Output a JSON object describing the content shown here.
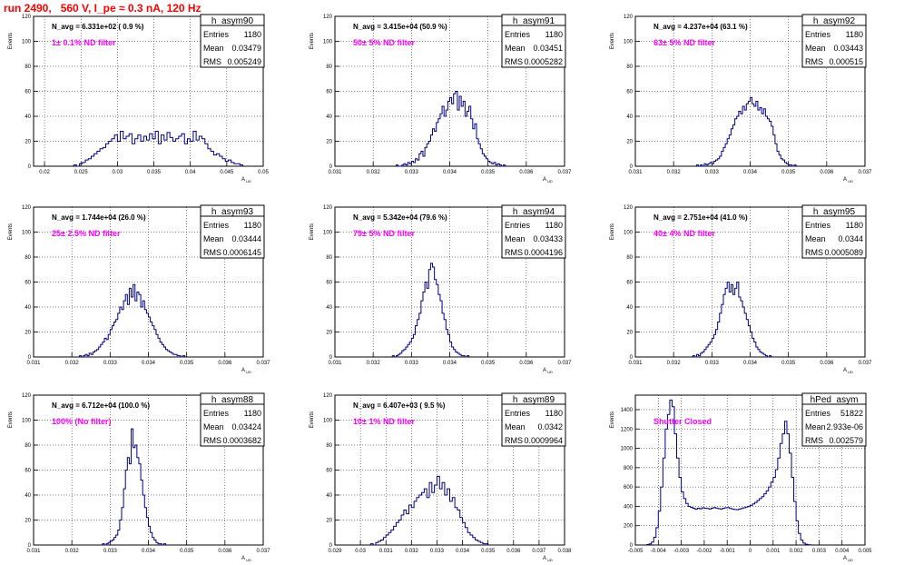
{
  "header": {
    "title": "run 2490,   560 V, I_pe ≈ 0.3 nA, 120 Hz"
  },
  "chart_data": [
    {
      "type": "bar",
      "name": "h_asym90",
      "navg": "N_avg = 6.331e+02 ( 0.9 %)",
      "filter_label": "1± 0.1% ND filter",
      "stats": {
        "entries": "1180",
        "mean": "0.03479",
        "rms": "0.005249"
      },
      "xlim": [
        0.0185,
        0.05
      ],
      "ylim": [
        0,
        120
      ],
      "x_ticks": [
        0.02,
        0.025,
        0.03,
        0.035,
        0.04,
        0.045,
        0.05
      ],
      "y_ticks": [
        0,
        20,
        40,
        60,
        80,
        100,
        120
      ],
      "ylabel": "Events",
      "xlabel": "A",
      "xlabel_sub": "UD",
      "bin_start": 0.024,
      "bin_width": 0.0004,
      "values": [
        1,
        0,
        2,
        3,
        5,
        6,
        8,
        10,
        12,
        14,
        15,
        18,
        20,
        22,
        25,
        20,
        28,
        22,
        24,
        26,
        18,
        22,
        25,
        20,
        24,
        21,
        26,
        22,
        28,
        18,
        25,
        21,
        27,
        23,
        20,
        22,
        24,
        26,
        18,
        22,
        20,
        28,
        21,
        24,
        22,
        18,
        14,
        12,
        9,
        10,
        8,
        6,
        4,
        5,
        3,
        2,
        2,
        1
      ]
    },
    {
      "type": "bar",
      "name": "h_asym91",
      "navg": "N_avg = 3.415e+04 (50.9 %)",
      "filter_label": "50± 5% ND filter",
      "stats": {
        "entries": "1180",
        "mean": "0.03451",
        "rms": "0.0005282"
      },
      "xlim": [
        0.031,
        0.037
      ],
      "ylim": [
        0,
        120
      ],
      "x_ticks": [
        0.031,
        0.032,
        0.033,
        0.034,
        0.035,
        0.036,
        0.037
      ],
      "y_ticks": [
        0,
        20,
        40,
        60,
        80,
        100,
        120
      ],
      "ylabel": "Events",
      "xlabel": "A",
      "xlabel_sub": "UD",
      "bin_start": 0.0326,
      "bin_width": 5e-05,
      "values": [
        1,
        0,
        0,
        1,
        2,
        1,
        3,
        2,
        4,
        3,
        6,
        5,
        10,
        12,
        8,
        15,
        18,
        20,
        25,
        30,
        28,
        35,
        38,
        42,
        48,
        40,
        45,
        52,
        55,
        50,
        58,
        60,
        45,
        56,
        48,
        52,
        40,
        44,
        48,
        38,
        30,
        34,
        22,
        18,
        14,
        10,
        8,
        6,
        4,
        3,
        2,
        3,
        1,
        2,
        1,
        0,
        1
      ]
    },
    {
      "type": "bar",
      "name": "h_asym92",
      "navg": "N_avg = 4.237e+04 (63.1 %)",
      "filter_label": "63± 5% ND filter",
      "stats": {
        "entries": "1180",
        "mean": "0.03443",
        "rms": "0.000515"
      },
      "xlim": [
        0.031,
        0.037
      ],
      "ylim": [
        0,
        120
      ],
      "x_ticks": [
        0.031,
        0.032,
        0.033,
        0.034,
        0.035,
        0.036,
        0.037
      ],
      "y_ticks": [
        0,
        20,
        40,
        60,
        80,
        100,
        120
      ],
      "ylabel": "Events",
      "xlabel": "A",
      "xlabel_sub": "UD",
      "bin_start": 0.0326,
      "bin_width": 5e-05,
      "values": [
        1,
        0,
        1,
        0,
        2,
        1,
        2,
        3,
        2,
        4,
        5,
        6,
        8,
        12,
        15,
        18,
        22,
        25,
        30,
        33,
        38,
        40,
        44,
        42,
        48,
        45,
        50,
        52,
        55,
        50,
        48,
        52,
        45,
        47,
        42,
        46,
        40,
        38,
        36,
        32,
        25,
        18,
        12,
        9,
        6,
        5,
        3,
        2,
        1,
        1,
        0,
        1
      ]
    },
    {
      "type": "bar",
      "name": "h_asym93",
      "navg": "N_avg = 1.744e+04 (26.0 %)",
      "filter_label": "25± 2.5% ND filter",
      "stats": {
        "entries": "1180",
        "mean": "0.03444",
        "rms": "0.0006145"
      },
      "xlim": [
        0.031,
        0.037
      ],
      "ylim": [
        0,
        120
      ],
      "x_ticks": [
        0.031,
        0.032,
        0.033,
        0.034,
        0.035,
        0.036,
        0.037
      ],
      "y_ticks": [
        0,
        20,
        40,
        60,
        80,
        100,
        120
      ],
      "ylabel": "Events",
      "xlabel": "A",
      "xlabel_sub": "UD",
      "bin_start": 0.0322,
      "bin_width": 5e-05,
      "values": [
        1,
        0,
        1,
        2,
        1,
        3,
        2,
        4,
        5,
        6,
        8,
        10,
        12,
        15,
        14,
        18,
        22,
        25,
        28,
        30,
        35,
        40,
        38,
        45,
        50,
        42,
        55,
        48,
        58,
        45,
        52,
        50,
        40,
        45,
        38,
        35,
        32,
        28,
        25,
        22,
        18,
        15,
        12,
        10,
        8,
        6,
        5,
        4,
        3,
        2,
        2,
        1,
        1,
        0,
        1
      ]
    },
    {
      "type": "bar",
      "name": "h_asym94",
      "navg": "N_avg = 5.342e+04 (79.6 %)",
      "filter_label": "79± 5% ND filter",
      "stats": {
        "entries": "1180",
        "mean": "0.03433",
        "rms": "0.0004196"
      },
      "xlim": [
        0.031,
        0.037
      ],
      "ylim": [
        0,
        120
      ],
      "x_ticks": [
        0.031,
        0.032,
        0.033,
        0.034,
        0.035,
        0.036,
        0.037
      ],
      "y_ticks": [
        0,
        20,
        40,
        60,
        80,
        100,
        120
      ],
      "ylabel": "Events",
      "xlabel": "A",
      "xlabel_sub": "UD",
      "bin_start": 0.0325,
      "bin_width": 5e-05,
      "values": [
        1,
        0,
        1,
        2,
        3,
        5,
        6,
        8,
        10,
        12,
        15,
        18,
        25,
        30,
        35,
        45,
        52,
        60,
        55,
        70,
        75,
        72,
        62,
        58,
        50,
        45,
        35,
        30,
        22,
        18,
        12,
        8,
        6,
        4,
        3,
        2,
        1,
        1,
        0,
        1
      ]
    },
    {
      "type": "bar",
      "name": "h_asym95",
      "navg": "N_avg = 2.751e+04 (41.0 %)",
      "filter_label": "40± 4% ND filter",
      "stats": {
        "entries": "1180",
        "mean": "0.0344",
        "rms": "0.0005089"
      },
      "xlim": [
        0.031,
        0.037
      ],
      "ylim": [
        0,
        120
      ],
      "x_ticks": [
        0.031,
        0.032,
        0.033,
        0.034,
        0.035,
        0.036,
        0.037
      ],
      "y_ticks": [
        0,
        20,
        40,
        60,
        80,
        100,
        120
      ],
      "ylabel": "Events",
      "xlabel": "A",
      "xlabel_sub": "UD",
      "bin_start": 0.0325,
      "bin_width": 5e-05,
      "values": [
        1,
        0,
        2,
        1,
        3,
        4,
        6,
        8,
        10,
        12,
        15,
        18,
        22,
        28,
        35,
        42,
        50,
        55,
        60,
        52,
        58,
        50,
        55,
        60,
        48,
        45,
        40,
        35,
        30,
        25,
        20,
        15,
        12,
        8,
        6,
        4,
        3,
        2,
        1,
        0,
        1
      ]
    },
    {
      "type": "bar",
      "name": "h_asym88",
      "navg": "N_avg = 6.712e+04 (100.0 %)",
      "filter_label": "100% (No filter)",
      "stats": {
        "entries": "1180",
        "mean": "0.03424",
        "rms": "0.0003682"
      },
      "xlim": [
        0.031,
        0.037
      ],
      "ylim": [
        0,
        120
      ],
      "x_ticks": [
        0.031,
        0.032,
        0.033,
        0.034,
        0.035,
        0.036,
        0.037
      ],
      "y_ticks": [
        0,
        20,
        40,
        60,
        80,
        100,
        120
      ],
      "ylabel": "Events",
      "xlabel": "A",
      "xlabel_sub": "UD",
      "bin_start": 0.0328,
      "bin_width": 5e-05,
      "values": [
        1,
        0,
        1,
        2,
        3,
        4,
        6,
        8,
        12,
        20,
        30,
        45,
        60,
        70,
        65,
        93,
        78,
        80,
        70,
        65,
        52,
        40,
        30,
        22,
        15,
        10,
        6,
        4,
        2,
        1,
        1,
        0,
        1
      ]
    },
    {
      "type": "bar",
      "name": "h_asym89",
      "navg": "N_avg = 6.407e+03 ( 9.5 %)",
      "filter_label": "10± 1% ND filter",
      "stats": {
        "entries": "1180",
        "mean": "0.0342",
        "rms": "0.0009964"
      },
      "xlim": [
        0.029,
        0.038
      ],
      "ylim": [
        0,
        120
      ],
      "x_ticks": [
        0.029,
        0.03,
        0.031,
        0.032,
        0.033,
        0.034,
        0.035,
        0.036,
        0.037,
        0.038
      ],
      "y_ticks": [
        0,
        20,
        40,
        60,
        80,
        100,
        120
      ],
      "ylabel": "Events",
      "xlabel": "A",
      "xlabel_sub": "UD",
      "bin_start": 0.0304,
      "bin_width": 0.0001,
      "values": [
        1,
        0,
        2,
        3,
        4,
        6,
        8,
        10,
        12,
        15,
        18,
        20,
        24,
        28,
        25,
        32,
        30,
        35,
        38,
        40,
        42,
        45,
        38,
        50,
        42,
        48,
        55,
        45,
        50,
        40,
        45,
        35,
        38,
        30,
        28,
        22,
        18,
        14,
        10,
        8,
        6,
        4,
        3,
        2,
        1,
        1
      ]
    },
    {
      "type": "bar",
      "name": "hPed_asym",
      "navg": "",
      "filter_label": "Shutter Closed",
      "stats": {
        "entries": "51822",
        "mean": "2.933e-06",
        "rms": "0.002579"
      },
      "xlim": [
        -0.005,
        0.005
      ],
      "ylim": [
        0,
        1550
      ],
      "x_ticks": [
        -0.005,
        -0.004,
        -0.003,
        -0.002,
        -0.001,
        0,
        0.001,
        0.002,
        0.003,
        0.004,
        0.005
      ],
      "y_ticks": [
        0,
        200,
        400,
        600,
        800,
        1000,
        1200,
        1400
      ],
      "ylabel": "Events",
      "xlabel": "A",
      "xlabel_sub": "UD",
      "bin_start": -0.0045,
      "bin_width": 0.0001,
      "values": [
        5,
        12,
        30,
        80,
        180,
        350,
        600,
        900,
        1200,
        1350,
        1500,
        1430,
        1150,
        900,
        700,
        550,
        480,
        430,
        400,
        390,
        380,
        370,
        380,
        375,
        385,
        380,
        378,
        372,
        380,
        388,
        382,
        376,
        372,
        380,
        385,
        388,
        378,
        372,
        368,
        365,
        372,
        378,
        385,
        392,
        400,
        410,
        425,
        440,
        460,
        480,
        500,
        530,
        560,
        600,
        650,
        700,
        780,
        900,
        1050,
        1150,
        1280,
        1150,
        950,
        700,
        450,
        250,
        120,
        50,
        20,
        8,
        3,
        1
      ]
    }
  ]
}
